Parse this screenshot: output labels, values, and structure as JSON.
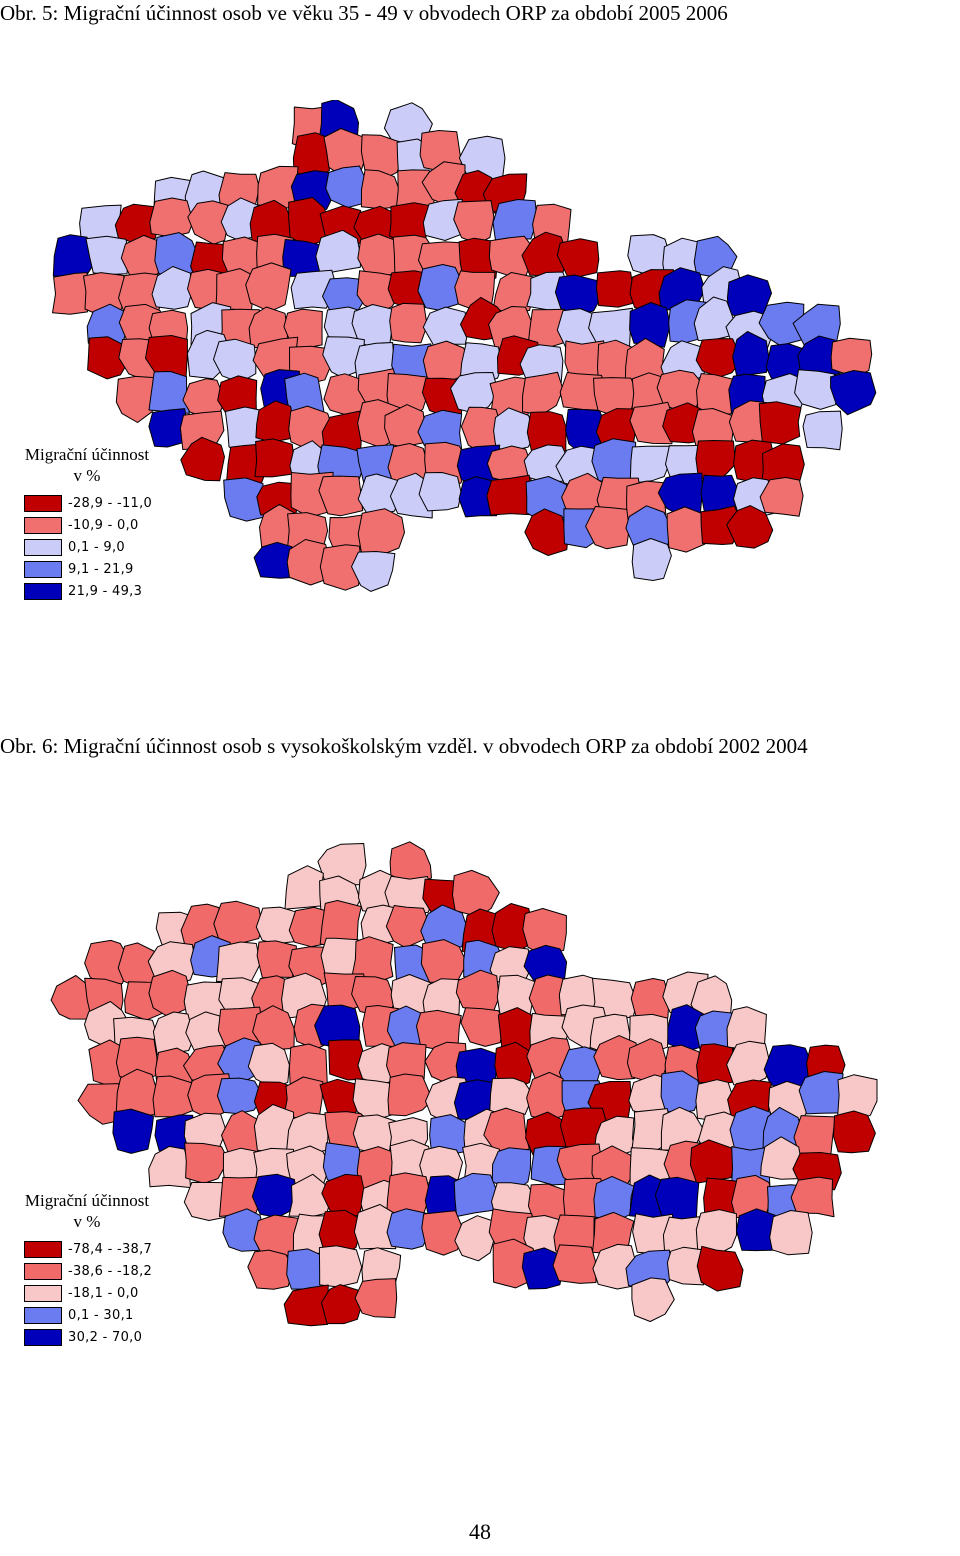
{
  "figure1": {
    "caption": "Obr. 5: Migrační účinnost osob ve věku 35 - 49 v obvodech ORP za období 2005 2006",
    "legend_title_line1": "Migrační účinnost",
    "legend_title_line2": "v %",
    "legend": [
      {
        "label": "-28,9 - -11,0",
        "color": "#c00000"
      },
      {
        "label": "-10,9 - 0,0",
        "color": "#f07070"
      },
      {
        "label": "0,1 - 9,0",
        "color": "#ccccf8"
      },
      {
        "label": "9,1 - 21,9",
        "color": "#6b7cf0"
      },
      {
        "label": "21,9 - 49,3",
        "color": "#0000bb"
      }
    ]
  },
  "figure2": {
    "caption": "Obr. 6: Migrační účinnost osob s vysokoškolským vzděl. v obvodech ORP za období 2002 2004",
    "legend_title_line1": "Migrační účinnost",
    "legend_title_line2": "v %",
    "legend": [
      {
        "label": "-78,4 - -38,7",
        "color": "#c00000"
      },
      {
        "label": "-38,6 - -18,2",
        "color": "#f06a6a"
      },
      {
        "label": "-18,1 - 0,0",
        "color": "#f8c8c8"
      },
      {
        "label": "0,1 - 30,1",
        "color": "#6b7cf0"
      },
      {
        "label": "30,2 - 70,0",
        "color": "#0000bb"
      }
    ]
  },
  "page_number": "48"
}
